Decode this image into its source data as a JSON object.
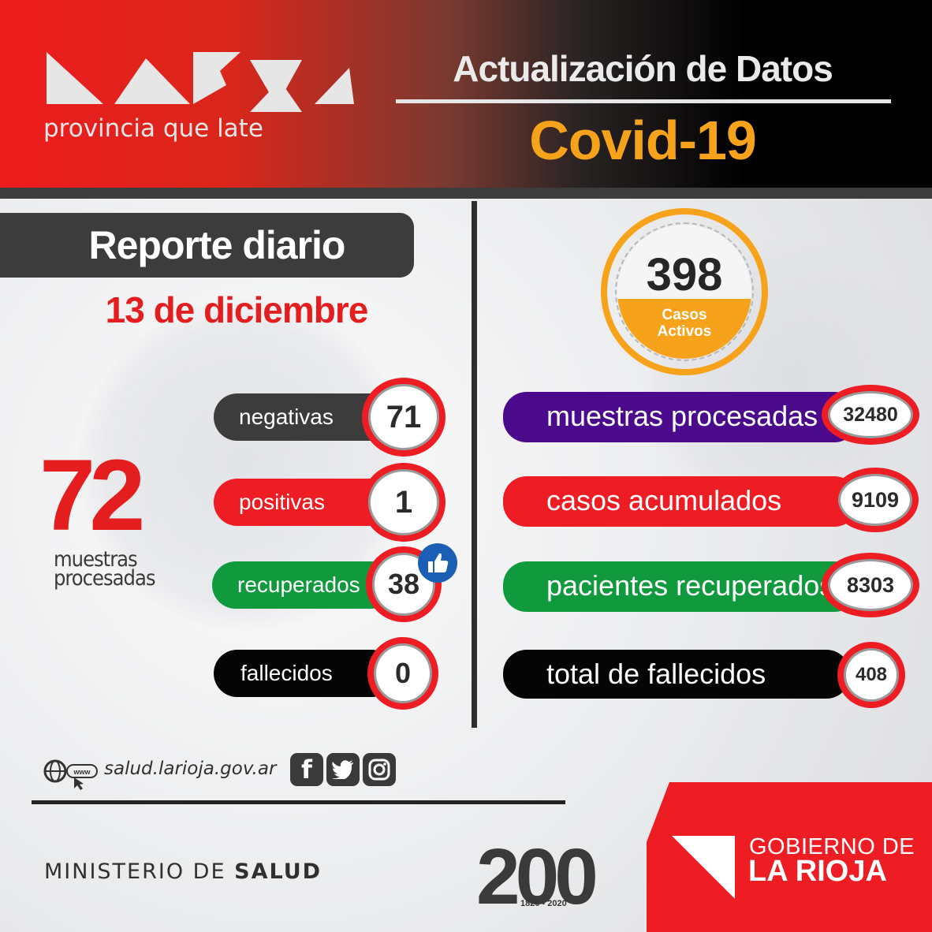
{
  "header": {
    "logo_tagline": "provincia que late",
    "title": "Actualización de Datos",
    "subtitle": "Covid-19"
  },
  "left": {
    "report_title": "Reporte diario",
    "date": "13 de diciembre",
    "total_value": "72",
    "total_label_line1": "muestras",
    "total_label_line2": "procesadas",
    "stats": [
      {
        "label": "negativas",
        "value": "71"
      },
      {
        "label": "positivas",
        "value": "1"
      },
      {
        "label": "recuperados",
        "value": "38"
      },
      {
        "label": "fallecidos",
        "value": "0"
      }
    ]
  },
  "right": {
    "active_value": "398",
    "active_label_line1": "Casos",
    "active_label_line2": "Activos",
    "stats": [
      {
        "label": "muestras procesadas",
        "value": "32480"
      },
      {
        "label": "casos acumulados",
        "value": "9109"
      },
      {
        "label": "pacientes recuperados",
        "value": "8303"
      },
      {
        "label": "total de fallecidos",
        "value": "408"
      }
    ]
  },
  "footer": {
    "website": "salud.larioja.gov.ar",
    "www_label": "www",
    "ministry_prefix": "MINISTERIO DE",
    "ministry_bold": "SALUD",
    "bicentennial_number": "200",
    "bicentennial_years": "1820 - 2020",
    "gov_line1": "GOBIERNO DE",
    "gov_line2": "LA RIOJA"
  },
  "colors": {
    "red": "#ee1c23",
    "orange": "#f7a21b",
    "dark": "#3c3c3c",
    "purple": "#4b0a8c",
    "green": "#119a3d",
    "black": "#000000",
    "facebook_blue": "#1b5fb5"
  },
  "icons": [
    "globe-icon",
    "cursor-icon",
    "thumbs-up-icon",
    "facebook-icon",
    "twitter-icon",
    "instagram-icon"
  ]
}
